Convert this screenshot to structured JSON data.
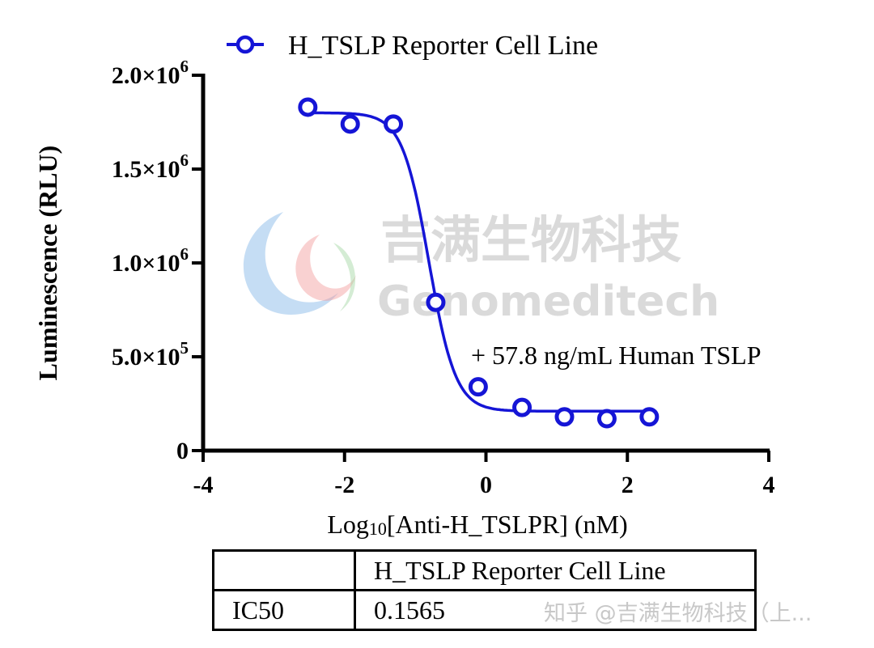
{
  "legend": {
    "label": "H_TSLP Reporter Cell Line",
    "color": "#1515d6"
  },
  "annotation": "+ 57.8 ng/mL Human TSLP",
  "watermark": {
    "cn": "吉满生物科技",
    "en": "Genomeditech",
    "credit": "知乎 @吉满生物科技（上..."
  },
  "chart_data": {
    "type": "scatter",
    "title": "",
    "xlabel_main": "Log",
    "xlabel_sub": "10",
    "xlabel_rest": "[Anti-H_TSLPR] (nM)",
    "ylabel": "Luminescence (RLU)",
    "xlim": [
      -4,
      4
    ],
    "ylim": [
      0,
      2000000
    ],
    "xticks": [
      -4,
      -2,
      0,
      2,
      4
    ],
    "yticks": [
      {
        "value": 0,
        "mantissa": "0",
        "exp": ""
      },
      {
        "value": 500000,
        "mantissa": "5.0×10",
        "exp": "5"
      },
      {
        "value": 1000000,
        "mantissa": "1.0×10",
        "exp": "6"
      },
      {
        "value": 1500000,
        "mantissa": "1.5×10",
        "exp": "6"
      },
      {
        "value": 2000000,
        "mantissa": "2.0×10",
        "exp": "6"
      }
    ],
    "series": [
      {
        "name": "H_TSLP Reporter Cell Line",
        "x": [
          -2.52,
          -1.92,
          -1.31,
          -0.71,
          -0.11,
          0.51,
          1.11,
          1.71,
          2.31
        ],
        "y": [
          1830000,
          1740000,
          1740000,
          790000,
          340000,
          230000,
          180000,
          170000,
          180000
        ],
        "fit": {
          "model": "4PL",
          "top": 1800000,
          "bottom": 210000,
          "logIC50": -0.806,
          "hill": -2.3
        }
      }
    ],
    "legend_position": "top"
  },
  "table": {
    "header": [
      "",
      "H_TSLP Reporter Cell Line"
    ],
    "rows": [
      [
        "IC50",
        "0.1565"
      ]
    ]
  }
}
